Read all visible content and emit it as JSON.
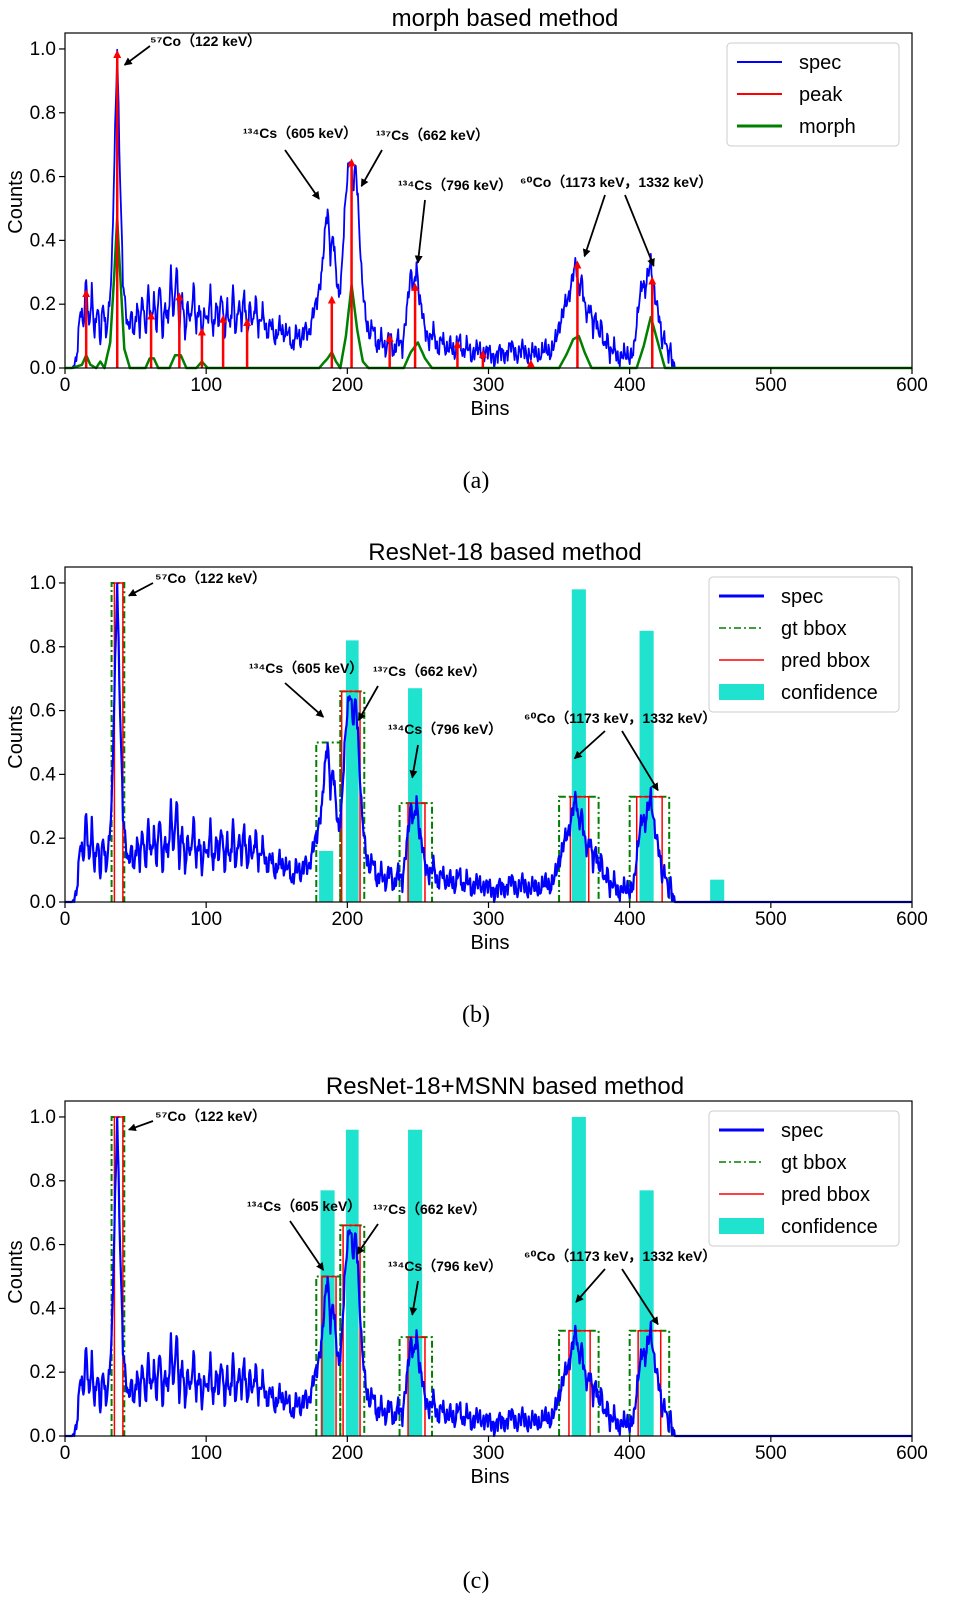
{
  "chart_data": [
    {
      "type": "line",
      "panel_caption": "(a)",
      "title": "morph based method",
      "xlabel": "Bins",
      "ylabel": "Counts",
      "xlim": [
        0,
        600
      ],
      "ylim": [
        0,
        1.05
      ],
      "xticks": [
        0,
        100,
        200,
        300,
        400,
        500,
        600
      ],
      "yticks": [
        "0.0",
        "0.2",
        "0.4",
        "0.6",
        "0.8",
        "1.0"
      ],
      "legend_position": "top-right",
      "legend": [
        "spec",
        "peak",
        "morph"
      ],
      "colors": {
        "spec": "#0000ff",
        "peak": "#ff0000",
        "morph": "#008000"
      },
      "spec_keypoints": [
        [
          5,
          0
        ],
        [
          8,
          0.02
        ],
        [
          11,
          0.19
        ],
        [
          13,
          0.13
        ],
        [
          15,
          0.28
        ],
        [
          17,
          0.12
        ],
        [
          19,
          0.24
        ],
        [
          21,
          0.1
        ],
        [
          23,
          0.2
        ],
        [
          25,
          0.08
        ],
        [
          27,
          0.21
        ],
        [
          29,
          0.1
        ],
        [
          31,
          0.18
        ],
        [
          33,
          0.3
        ],
        [
          35,
          0.65
        ],
        [
          37,
          1.0
        ],
        [
          39,
          0.6
        ],
        [
          41,
          0.28
        ],
        [
          43,
          0.18
        ],
        [
          45,
          0.12
        ],
        [
          47,
          0.17
        ],
        [
          49,
          0.1
        ],
        [
          51,
          0.2
        ],
        [
          53,
          0.12
        ],
        [
          55,
          0.23
        ],
        [
          57,
          0.1
        ],
        [
          59,
          0.25
        ],
        [
          61,
          0.14
        ],
        [
          63,
          0.22
        ],
        [
          65,
          0.12
        ],
        [
          67,
          0.28
        ],
        [
          69,
          0.1
        ],
        [
          71,
          0.2
        ],
        [
          73,
          0.14
        ],
        [
          75,
          0.3
        ],
        [
          77,
          0.15
        ],
        [
          79,
          0.33
        ],
        [
          81,
          0.12
        ],
        [
          83,
          0.24
        ],
        [
          85,
          0.1
        ],
        [
          87,
          0.2
        ],
        [
          89,
          0.14
        ],
        [
          91,
          0.26
        ],
        [
          93,
          0.12
        ],
        [
          95,
          0.2
        ],
        [
          97,
          0.1
        ],
        [
          99,
          0.18
        ],
        [
          101,
          0.14
        ],
        [
          103,
          0.24
        ],
        [
          105,
          0.1
        ],
        [
          107,
          0.2
        ],
        [
          109,
          0.14
        ],
        [
          111,
          0.24
        ],
        [
          113,
          0.1
        ],
        [
          115,
          0.2
        ],
        [
          117,
          0.12
        ],
        [
          119,
          0.25
        ],
        [
          121,
          0.1
        ],
        [
          123,
          0.21
        ],
        [
          125,
          0.14
        ],
        [
          127,
          0.24
        ],
        [
          129,
          0.1
        ],
        [
          131,
          0.2
        ],
        [
          133,
          0.13
        ],
        [
          135,
          0.22
        ],
        [
          137,
          0.12
        ],
        [
          140,
          0.18
        ],
        [
          143,
          0.1
        ],
        [
          146,
          0.15
        ],
        [
          149,
          0.08
        ],
        [
          152,
          0.14
        ],
        [
          155,
          0.1
        ],
        [
          158,
          0.12
        ],
        [
          161,
          0.06
        ],
        [
          164,
          0.12
        ],
        [
          167,
          0.08
        ],
        [
          170,
          0.13
        ],
        [
          173,
          0.1
        ],
        [
          176,
          0.18
        ],
        [
          179,
          0.22
        ],
        [
          182,
          0.3
        ],
        [
          184,
          0.42
        ],
        [
          186,
          0.5
        ],
        [
          188,
          0.35
        ],
        [
          190,
          0.42
        ],
        [
          192,
          0.3
        ],
        [
          194,
          0.22
        ],
        [
          196,
          0.3
        ],
        [
          198,
          0.48
        ],
        [
          200,
          0.6
        ],
        [
          202,
          0.66
        ],
        [
          204,
          0.56
        ],
        [
          206,
          0.64
        ],
        [
          208,
          0.48
        ],
        [
          210,
          0.3
        ],
        [
          212,
          0.2
        ],
        [
          214,
          0.13
        ],
        [
          216,
          0.1
        ],
        [
          218,
          0.14
        ],
        [
          221,
          0.06
        ],
        [
          224,
          0.1
        ],
        [
          227,
          0.05
        ],
        [
          230,
          0.11
        ],
        [
          233,
          0.04
        ],
        [
          236,
          0.1
        ],
        [
          239,
          0.06
        ],
        [
          242,
          0.18
        ],
        [
          245,
          0.3
        ],
        [
          247,
          0.25
        ],
        [
          249,
          0.32
        ],
        [
          251,
          0.22
        ],
        [
          253,
          0.18
        ],
        [
          255,
          0.12
        ],
        [
          258,
          0.08
        ],
        [
          261,
          0.12
        ],
        [
          264,
          0.05
        ],
        [
          267,
          0.1
        ],
        [
          270,
          0.05
        ],
        [
          273,
          0.08
        ],
        [
          276,
          0.04
        ],
        [
          279,
          0.1
        ],
        [
          282,
          0.04
        ],
        [
          285,
          0.08
        ],
        [
          288,
          0.03
        ],
        [
          292,
          0.07
        ],
        [
          296,
          0.04
        ],
        [
          300,
          0.06
        ],
        [
          304,
          0.02
        ],
        [
          308,
          0.06
        ],
        [
          312,
          0.03
        ],
        [
          316,
          0.08
        ],
        [
          320,
          0.03
        ],
        [
          324,
          0.07
        ],
        [
          328,
          0.03
        ],
        [
          332,
          0.06
        ],
        [
          336,
          0.03
        ],
        [
          340,
          0.07
        ],
        [
          344,
          0.04
        ],
        [
          348,
          0.1
        ],
        [
          351,
          0.14
        ],
        [
          354,
          0.2
        ],
        [
          357,
          0.22
        ],
        [
          360,
          0.3
        ],
        [
          362,
          0.33
        ],
        [
          364,
          0.24
        ],
        [
          366,
          0.28
        ],
        [
          368,
          0.2
        ],
        [
          370,
          0.16
        ],
        [
          372,
          0.2
        ],
        [
          374,
          0.12
        ],
        [
          376,
          0.17
        ],
        [
          378,
          0.1
        ],
        [
          380,
          0.14
        ],
        [
          382,
          0.06
        ],
        [
          384,
          0.1
        ],
        [
          386,
          0.04
        ],
        [
          389,
          0.07
        ],
        [
          392,
          0.02
        ],
        [
          396,
          0.05
        ],
        [
          400,
          0.03
        ],
        [
          403,
          0.06
        ],
        [
          405,
          0.14
        ],
        [
          407,
          0.22
        ],
        [
          409,
          0.27
        ],
        [
          411,
          0.24
        ],
        [
          413,
          0.3
        ],
        [
          415,
          0.33
        ],
        [
          417,
          0.25
        ],
        [
          419,
          0.2
        ],
        [
          421,
          0.16
        ],
        [
          423,
          0.08
        ],
        [
          425,
          0.1
        ],
        [
          427,
          0.04
        ],
        [
          429,
          0.06
        ],
        [
          431,
          0.0
        ],
        [
          435,
          0
        ],
        [
          600,
          0
        ]
      ],
      "peaks": [
        [
          15,
          0.25
        ],
        [
          37,
          1.0
        ],
        [
          61,
          0.18
        ],
        [
          81,
          0.24
        ],
        [
          97,
          0.13
        ],
        [
          112,
          0.17
        ],
        [
          129,
          0.16
        ],
        [
          189,
          0.23
        ],
        [
          203,
          0.66
        ],
        [
          230,
          0.11
        ],
        [
          248,
          0.27
        ],
        [
          278,
          0.09
        ],
        [
          296,
          0.06
        ],
        [
          330,
          0.03
        ],
        [
          363,
          0.34
        ],
        [
          416,
          0.29
        ]
      ],
      "morph_keypoints": [
        [
          5,
          0
        ],
        [
          12,
          0.01
        ],
        [
          15,
          0.04
        ],
        [
          18,
          0.01
        ],
        [
          22,
          0.0
        ],
        [
          25,
          0.02
        ],
        [
          28,
          0.0
        ],
        [
          32,
          0.08
        ],
        [
          35,
          0.3
        ],
        [
          37,
          0.47
        ],
        [
          39,
          0.3
        ],
        [
          42,
          0.06
        ],
        [
          46,
          0.0
        ],
        [
          57,
          0.0
        ],
        [
          60,
          0.03
        ],
        [
          63,
          0.03
        ],
        [
          66,
          0.0
        ],
        [
          74,
          0.0
        ],
        [
          78,
          0.04
        ],
        [
          82,
          0.04
        ],
        [
          86,
          0.0
        ],
        [
          93,
          0.0
        ],
        [
          97,
          0.02
        ],
        [
          101,
          0.0
        ],
        [
          180,
          0.0
        ],
        [
          186,
          0.03
        ],
        [
          189,
          0.05
        ],
        [
          192,
          0.02
        ],
        [
          195,
          0.0
        ],
        [
          199,
          0.1
        ],
        [
          203,
          0.26
        ],
        [
          207,
          0.12
        ],
        [
          211,
          0.02
        ],
        [
          215,
          0.0
        ],
        [
          240,
          0.0
        ],
        [
          245,
          0.05
        ],
        [
          250,
          0.08
        ],
        [
          255,
          0.03
        ],
        [
          260,
          0.0
        ],
        [
          350,
          0.0
        ],
        [
          355,
          0.04
        ],
        [
          360,
          0.09
        ],
        [
          364,
          0.1
        ],
        [
          368,
          0.05
        ],
        [
          373,
          0.0
        ],
        [
          405,
          0.0
        ],
        [
          410,
          0.07
        ],
        [
          415,
          0.16
        ],
        [
          420,
          0.08
        ],
        [
          425,
          0.0
        ],
        [
          600,
          0
        ]
      ],
      "annotations": [
        {
          "label": "⁵⁷Co（122 keV）",
          "target": [
            38,
            0.95
          ]
        },
        {
          "label": "¹³⁴Cs（605 keV）",
          "target": [
            180,
            0.53
          ]
        },
        {
          "label": "¹³⁷Cs（662 keV）",
          "target": [
            210,
            0.57
          ]
        },
        {
          "label": "¹³⁴Cs（796 keV）",
          "target": [
            250,
            0.33
          ]
        },
        {
          "label": "⁶⁰Co（1173 keV，1332 keV）",
          "targets": [
            [
              368,
              0.35
            ],
            [
              417,
              0.32
            ]
          ]
        }
      ]
    },
    {
      "type": "line",
      "panel_caption": "(b)",
      "title": "ResNet-18 based method",
      "xlabel": "Bins",
      "ylabel": "Counts",
      "xlim": [
        0,
        600
      ],
      "ylim": [
        0,
        1.05
      ],
      "xticks": [
        0,
        100,
        200,
        300,
        400,
        500,
        600
      ],
      "yticks": [
        "0.0",
        "0.2",
        "0.4",
        "0.6",
        "0.8",
        "1.0"
      ],
      "legend_position": "top-right",
      "legend": [
        "spec",
        "gt bbox",
        "pred bbox",
        "confidence"
      ],
      "colors": {
        "spec": "#0000ff",
        "gt": "#008000",
        "pred": "#ff0000",
        "confidence": "#20e3cf"
      },
      "gt_boxes": [
        [
          33,
          42,
          1.0
        ],
        [
          178,
          195,
          0.5
        ],
        [
          195,
          212,
          0.66
        ],
        [
          237,
          260,
          0.31
        ],
        [
          350,
          378,
          0.33
        ],
        [
          400,
          428,
          0.33
        ]
      ],
      "pred_boxes": [
        [
          35,
          41,
          1.0
        ],
        [
          196,
          209,
          0.66
        ],
        [
          243,
          255,
          0.31
        ],
        [
          358,
          371,
          0.33
        ],
        [
          405,
          423,
          0.33
        ]
      ],
      "confidence_bars": [
        [
          180,
          190,
          0.16
        ],
        [
          199,
          208,
          0.82
        ],
        [
          243,
          253,
          0.67
        ],
        [
          359,
          369,
          0.98
        ],
        [
          407,
          417,
          0.85
        ],
        [
          457,
          467,
          0.07
        ]
      ],
      "annotations": [
        {
          "label": "⁵⁷Co（122 keV）",
          "target": [
            41,
            0.96
          ]
        },
        {
          "label": "¹³⁴Cs（605 keV）",
          "target": [
            183,
            0.58
          ]
        },
        {
          "label": "¹³⁷Cs（662 keV）",
          "target": [
            208,
            0.57
          ]
        },
        {
          "label": "¹³⁴Cs（796 keV）",
          "target": [
            246,
            0.39
          ]
        },
        {
          "label": "⁶⁰Co（1173 keV，1332 keV）",
          "targets": [
            [
              361,
              0.45
            ],
            [
              420,
              0.35
            ]
          ]
        }
      ]
    },
    {
      "type": "line",
      "panel_caption": "(c)",
      "title": "ResNet-18+MSNN based method",
      "xlabel": "Bins",
      "ylabel": "Counts",
      "xlim": [
        0,
        600
      ],
      "ylim": [
        0,
        1.05
      ],
      "xticks": [
        0,
        100,
        200,
        300,
        400,
        500,
        600
      ],
      "yticks": [
        "0.0",
        "0.2",
        "0.4",
        "0.6",
        "0.8",
        "1.0"
      ],
      "legend_position": "top-right",
      "legend": [
        "spec",
        "gt bbox",
        "pred bbox",
        "confidence"
      ],
      "colors": {
        "spec": "#0000ff",
        "gt": "#008000",
        "pred": "#ff0000",
        "confidence": "#20e3cf"
      },
      "gt_boxes": [
        [
          33,
          42,
          1.0
        ],
        [
          178,
          195,
          0.5
        ],
        [
          195,
          212,
          0.66
        ],
        [
          237,
          260,
          0.31
        ],
        [
          350,
          378,
          0.33
        ],
        [
          400,
          428,
          0.33
        ]
      ],
      "pred_boxes": [
        [
          35,
          41,
          1.0
        ],
        [
          182,
          192,
          0.5
        ],
        [
          197,
          209,
          0.66
        ],
        [
          243,
          255,
          0.31
        ],
        [
          357,
          372,
          0.33
        ],
        [
          406,
          422,
          0.33
        ]
      ],
      "confidence_bars": [
        [
          181,
          191,
          0.77
        ],
        [
          199,
          208,
          0.96
        ],
        [
          243,
          253,
          0.96
        ],
        [
          359,
          369,
          1.0
        ],
        [
          407,
          417,
          0.77
        ]
      ],
      "annotations": [
        {
          "label": "⁵⁷Co（122 keV）",
          "target": [
            41,
            0.96
          ]
        },
        {
          "label": "¹³⁴Cs（605 keV）",
          "target": [
            183,
            0.52
          ]
        },
        {
          "label": "¹³⁷Cs（662 keV）",
          "target": [
            207,
            0.57
          ]
        },
        {
          "label": "¹³⁴Cs（796 keV）",
          "target": [
            246,
            0.38
          ]
        },
        {
          "label": "⁶⁰Co（1173 keV，1332 keV）",
          "targets": [
            [
              362,
              0.42
            ],
            [
              420,
              0.35
            ]
          ]
        }
      ]
    }
  ]
}
